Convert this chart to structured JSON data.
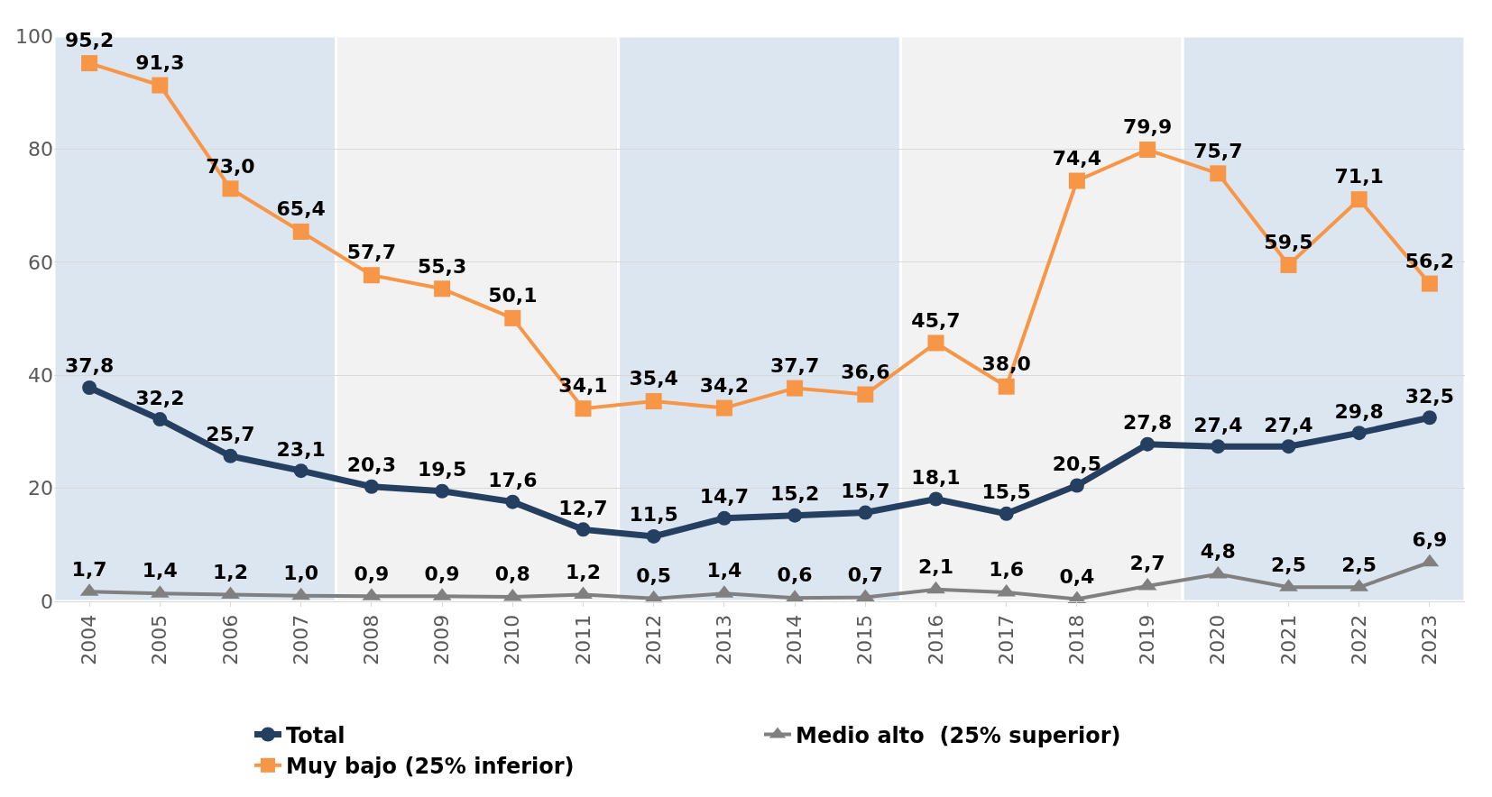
{
  "chart_data": {
    "type": "line",
    "x": [
      2004,
      2005,
      2006,
      2007,
      2008,
      2009,
      2010,
      2011,
      2012,
      2013,
      2014,
      2015,
      2016,
      2017,
      2018,
      2019,
      2020,
      2021,
      2022,
      2023
    ],
    "xlim": [
      2003.5,
      2023.5
    ],
    "xticks": [
      2004,
      2005,
      2006,
      2007,
      2008,
      2009,
      2010,
      2011,
      2012,
      2013,
      2014,
      2015,
      2016,
      2017,
      2018,
      2019,
      2020,
      2021,
      2022,
      2023
    ],
    "ylim": [
      0,
      100
    ],
    "yticks": [
      0,
      20,
      40,
      60,
      80,
      100
    ],
    "grid": "y",
    "legend": "bottom",
    "line_style": "solid",
    "series": [
      {
        "name": "Total",
        "color": "#243f60",
        "marker": "circle",
        "values": [
          37.8,
          32.2,
          25.7,
          23.1,
          20.3,
          19.5,
          17.6,
          12.7,
          11.5,
          14.7,
          15.2,
          15.7,
          18.1,
          15.5,
          20.5,
          27.8,
          27.4,
          27.4,
          29.8,
          32.5
        ],
        "value_labels": [
          "37,8",
          "32,2",
          "25,7",
          "23,1",
          "20,3",
          "19,5",
          "17,6",
          "12,7",
          "11,5",
          "14,7",
          "15,2",
          "15,7",
          "18,1",
          "15,5",
          "20,5",
          "27,8",
          "27,4",
          "27,4",
          "29,8",
          "32,5"
        ]
      },
      {
        "name": "Medio alto  (25% superior)",
        "color": "#808080",
        "marker": "triangle",
        "values": [
          1.7,
          1.4,
          1.2,
          1.0,
          0.9,
          0.9,
          0.8,
          1.2,
          0.5,
          1.4,
          0.6,
          0.7,
          2.1,
          1.6,
          0.4,
          2.7,
          4.8,
          2.5,
          2.5,
          6.9
        ],
        "value_labels": [
          "1,7",
          "1,4",
          "1,2",
          "1,0",
          "0,9",
          "0,9",
          "0,8",
          "1,2",
          "0,5",
          "1,4",
          "0,6",
          "0,7",
          "2,1",
          "1,6",
          "0,4",
          "2,7",
          "4,8",
          "2,5",
          "2,5",
          "6,9"
        ]
      },
      {
        "name": "Muy bajo (25% inferior)",
        "color": "#f79646",
        "marker": "square",
        "values": [
          95.2,
          91.3,
          73.0,
          65.4,
          57.7,
          55.3,
          50.1,
          34.1,
          35.4,
          34.2,
          37.7,
          36.6,
          45.7,
          38.0,
          74.4,
          79.9,
          75.7,
          59.5,
          71.1,
          56.2
        ],
        "value_labels": [
          "95,2",
          "91,3",
          "73,0",
          "65,4",
          "57,7",
          "55,3",
          "50,1",
          "34,1",
          "35,4",
          "34,2",
          "37,7",
          "36,6",
          "45,7",
          "38,0",
          "74,4",
          "79,9",
          "75,7",
          "59,5",
          "71,1",
          "56,2"
        ]
      }
    ],
    "bands": [
      {
        "axis": "x",
        "from": 2003.5,
        "to": 2007.5,
        "color": "#dce6f1"
      },
      {
        "axis": "x",
        "from": 2007.5,
        "to": 2011.5,
        "color": "#f2f2f2"
      },
      {
        "axis": "x",
        "from": 2011.5,
        "to": 2015.5,
        "color": "#dce6f1"
      },
      {
        "axis": "x",
        "from": 2015.5,
        "to": 2019.5,
        "color": "#f2f2f2"
      },
      {
        "axis": "x",
        "from": 2019.5,
        "to": 2023.5,
        "color": "#dce6f1"
      }
    ]
  }
}
